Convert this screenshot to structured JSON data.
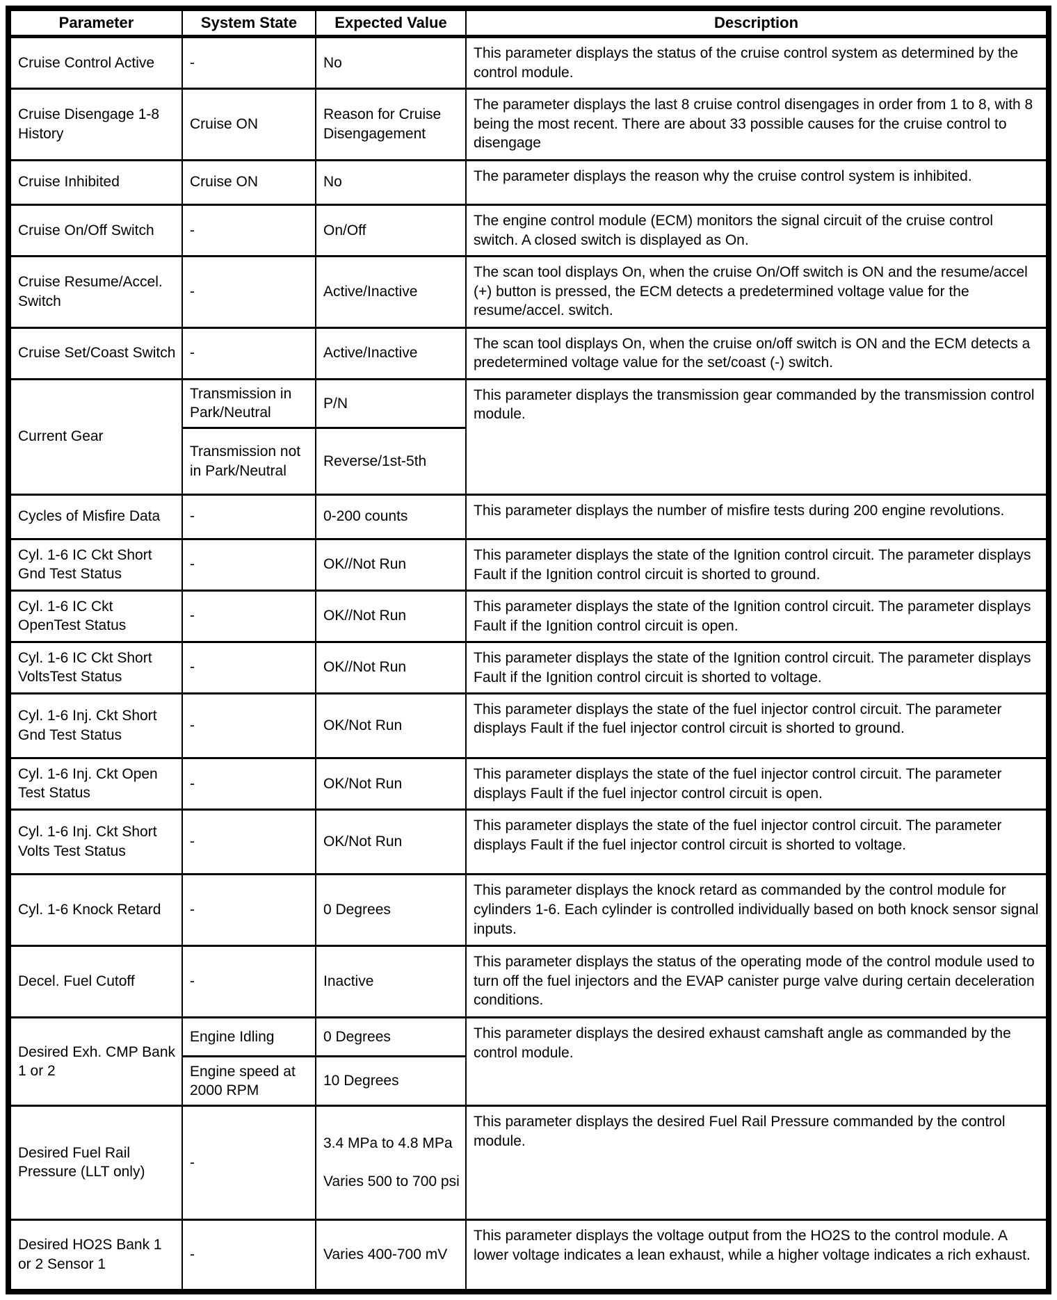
{
  "table": {
    "headers": [
      "Parameter",
      "System State",
      "Expected Value",
      "Description"
    ],
    "colors": {
      "border": "#000000",
      "background": "#ffffff",
      "text": "#000000"
    },
    "rows": [
      {
        "parameter": "Cruise Control Active",
        "subrows": [
          {
            "state": "-",
            "value": "No"
          }
        ],
        "description": "This parameter displays the status of the cruise control system as determined by the control module."
      },
      {
        "parameter": "Cruise Disengage 1-8 History",
        "subrows": [
          {
            "state": "Cruise ON",
            "value": "Reason for Cruise Disengagement"
          }
        ],
        "description": "The parameter displays the last 8 cruise control disengages in order from 1 to 8, with 8 being the most recent. There are about 33 possible causes for the cruise control to disengage"
      },
      {
        "parameter": "Cruise Inhibited",
        "subrows": [
          {
            "state": "Cruise ON",
            "value": "No"
          }
        ],
        "description": "The parameter displays the reason why the cruise control system is inhibited."
      },
      {
        "parameter": "Cruise On/Off Switch",
        "subrows": [
          {
            "state": "-",
            "value": "On/Off"
          }
        ],
        "description": "The engine control module (ECM) monitors the signal circuit of the cruise control switch. A closed switch is displayed as On."
      },
      {
        "parameter": "Cruise Resume/Accel. Switch",
        "subrows": [
          {
            "state": "-",
            "value": "Active/Inactive"
          }
        ],
        "description": "The scan tool displays On, when the cruise On/Off switch is ON and the resume/accel (+) button is pressed, the ECM detects a predetermined voltage value for the resume/accel. switch."
      },
      {
        "parameter": "Cruise Set/Coast Switch",
        "subrows": [
          {
            "state": "-",
            "value": "Active/Inactive"
          }
        ],
        "description": "The scan tool displays On, when the cruise on/off switch is ON and the ECM detects a predetermined voltage value for the set/coast (-) switch."
      },
      {
        "parameter": "Current Gear",
        "subrows": [
          {
            "state": "Transmission in Park/Neutral",
            "value": "P/N"
          },
          {
            "state": "Transmission not in Park/Neutral",
            "value": "Reverse/1st-5th"
          }
        ],
        "description": "This parameter displays the transmission gear commanded by the transmission control module."
      },
      {
        "parameter": "Cycles of Misfire Data",
        "subrows": [
          {
            "state": "-",
            "value": "0-200 counts"
          }
        ],
        "description": "This parameter displays the number of misfire tests during 200 engine revolutions."
      },
      {
        "parameter": "Cyl. 1-6 IC Ckt Short Gnd Test Status",
        "subrows": [
          {
            "state": "-",
            "value": "OK//Not Run"
          }
        ],
        "description": "This parameter displays the state of the Ignition control circuit. The parameter displays Fault if the Ignition control circuit is shorted to ground."
      },
      {
        "parameter": "Cyl. 1-6 IC Ckt OpenTest Status",
        "subrows": [
          {
            "state": "-",
            "value": "OK//Not Run"
          }
        ],
        "description": "This parameter displays the state of the Ignition control circuit. The parameter displays Fault if the Ignition control circuit is open."
      },
      {
        "parameter": "Cyl. 1-6 IC Ckt Short VoltsTest Status",
        "subrows": [
          {
            "state": "-",
            "value": "OK//Not Run"
          }
        ],
        "description": "This parameter displays the state of the Ignition control circuit. The parameter displays Fault if the Ignition control circuit is shorted to voltage."
      },
      {
        "parameter": "Cyl. 1-6 Inj. Ckt Short Gnd Test Status",
        "subrows": [
          {
            "state": "-",
            "value": "OK/Not Run"
          }
        ],
        "description": "This parameter displays the state of the fuel injector control circuit. The parameter displays Fault if the fuel injector control circuit is shorted to ground."
      },
      {
        "parameter": "Cyl. 1-6 Inj. Ckt Open Test Status",
        "subrows": [
          {
            "state": "-",
            "value": "OK/Not Run"
          }
        ],
        "description": "This parameter displays the state of the fuel injector control circuit. The parameter displays Fault if the fuel injector control circuit is open."
      },
      {
        "parameter": "Cyl. 1-6 Inj. Ckt Short Volts Test Status",
        "subrows": [
          {
            "state": "-",
            "value": "OK/Not Run"
          }
        ],
        "description": "This parameter displays the state of the fuel injector control circuit. The parameter displays Fault if the fuel injector control circuit is shorted to voltage."
      },
      {
        "parameter": "Cyl. 1-6 Knock Retard",
        "subrows": [
          {
            "state": "-",
            "value": "0 Degrees"
          }
        ],
        "description": "This parameter displays the knock retard as commanded by the control module for cylinders 1-6. Each cylinder is controlled individually based on both knock sensor signal inputs."
      },
      {
        "parameter": "Decel. Fuel Cutoff",
        "subrows": [
          {
            "state": "-",
            "value": "Inactive"
          }
        ],
        "description": "This parameter displays the status of the operating mode of the control module used to turn off the fuel injectors and the EVAP canister purge valve during certain deceleration conditions."
      },
      {
        "parameter": "Desired Exh. CMP Bank 1 or 2",
        "subrows": [
          {
            "state": "Engine Idling",
            "value": "0 Degrees"
          },
          {
            "state": "Engine speed at 2000 RPM",
            "value": "10 Degrees"
          }
        ],
        "description": "This parameter displays the desired exhaust camshaft angle as commanded by the control module."
      },
      {
        "parameter": "Desired Fuel Rail Pressure (LLT only)",
        "subrows": [
          {
            "state": "-",
            "value": "3.4 MPa to 4.8 MPa\n\nVaries 500 to 700 psi"
          }
        ],
        "description": "This parameter displays the desired Fuel Rail Pressure commanded by the control module."
      },
      {
        "parameter": "Desired HO2S Bank 1 or 2 Sensor 1",
        "subrows": [
          {
            "state": "-",
            "value": "Varies 400-700 mV"
          }
        ],
        "description": "This parameter displays the voltage output from the HO2S to the control module. A lower voltage indicates a lean exhaust, while a higher voltage indicates a rich exhaust."
      }
    ]
  }
}
